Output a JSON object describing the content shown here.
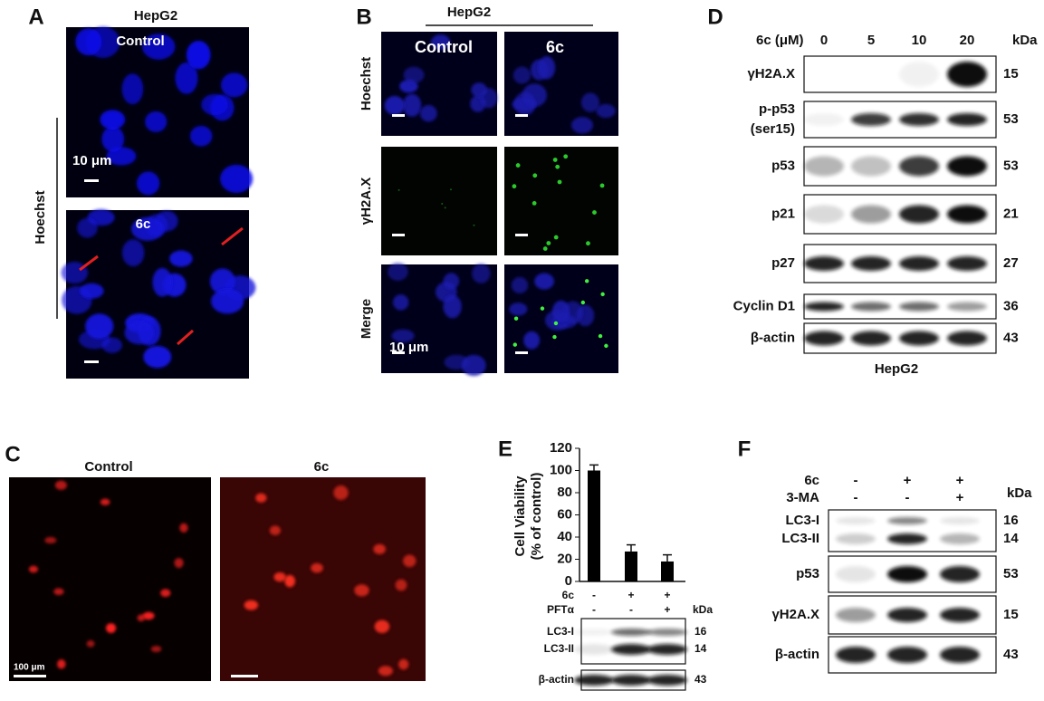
{
  "panels": {
    "A": {
      "label": "A",
      "title": "HepG2",
      "stain": "Hoechst",
      "images": [
        "Control",
        "6c"
      ],
      "scale_bar": "10 μm"
    },
    "B": {
      "label": "B",
      "title": "HepG2",
      "columns": [
        "Control",
        "6c"
      ],
      "rows": [
        "Hoechst",
        "γH2A.X",
        "Merge"
      ],
      "scale_bar": "10 μm"
    },
    "C": {
      "label": "C",
      "columns": [
        "Control",
        "6c"
      ],
      "scale_bar": "100 μm"
    },
    "D": {
      "label": "D",
      "treatment": "6c (μM)",
      "doses": [
        "0",
        "5",
        "10",
        "20"
      ],
      "unit": "kDa",
      "cell_line": "HepG2",
      "blots": [
        {
          "name": [
            "γH2A.X"
          ],
          "kda": 15
        },
        {
          "name": [
            "p-p53",
            "(ser15)"
          ],
          "kda": 53
        },
        {
          "name": [
            "p53"
          ],
          "kda": 53
        },
        {
          "name": [
            "p21"
          ],
          "kda": 21
        },
        {
          "name": [
            "p27"
          ],
          "kda": 27
        },
        {
          "name": [
            "Cyclin D1"
          ],
          "kda": 36
        },
        {
          "name": [
            "β-actin"
          ],
          "kda": 43
        }
      ]
    },
    "E": {
      "label": "E",
      "conditions": [
        {
          "name": "6c",
          "signs": [
            "-",
            "+",
            "+"
          ]
        },
        {
          "name": "PFTα",
          "signs": [
            "-",
            "-",
            "+"
          ]
        }
      ],
      "unit": "kDa",
      "blots": [
        [
          {
            "name": "LC3-I",
            "kda": 16
          },
          {
            "name": "LC3-II",
            "kda": 14
          }
        ],
        [
          {
            "name": "β-actin",
            "kda": 43
          }
        ]
      ]
    },
    "F": {
      "label": "F",
      "conditions": [
        {
          "name": "6c",
          "signs": [
            "-",
            "+",
            "+"
          ]
        },
        {
          "name": "3-MA",
          "signs": [
            "-",
            "-",
            "+"
          ]
        }
      ],
      "unit": "kDa",
      "blots": [
        [
          {
            "name": "LC3-I",
            "kda": 16
          },
          {
            "name": "LC3-II",
            "kda": 14
          }
        ],
        [
          {
            "name": "p53",
            "kda": 53
          }
        ],
        [
          {
            "name": "γH2A.X",
            "kda": 15
          }
        ],
        [
          {
            "name": "β-actin",
            "kda": 43
          }
        ]
      ]
    }
  },
  "chart_data": {
    "type": "bar",
    "y_label": [
      "Cell Viability",
      "(% of control)"
    ],
    "categories": [
      null,
      null,
      null
    ],
    "values": [
      100,
      27,
      18
    ],
    "errors": [
      5,
      6,
      6
    ],
    "color": "#000000",
    "ylim": [
      0,
      120
    ],
    "yticks": [
      0,
      20,
      40,
      60,
      80,
      100,
      120
    ]
  }
}
